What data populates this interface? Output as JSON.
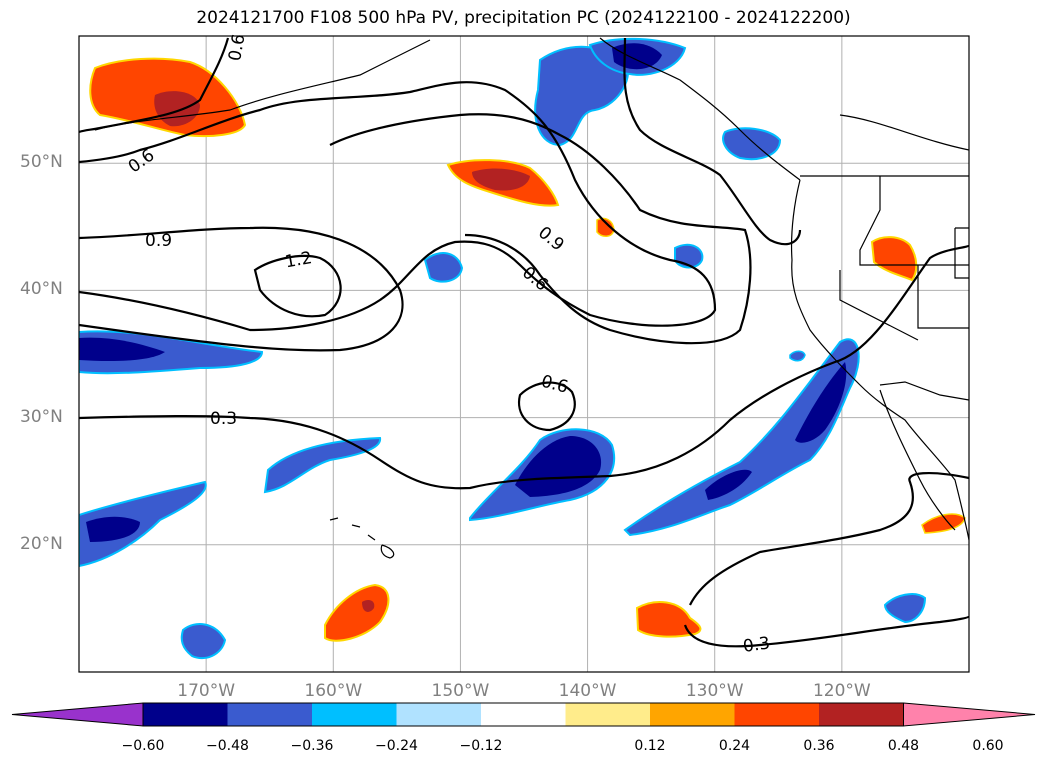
{
  "title": "2024121700 F108 500 hPa PV, precipitation PC (2024122100 - 2024122200)",
  "map": {
    "lon_range": [
      -180,
      -110
    ],
    "lat_range": [
      10,
      60
    ],
    "lat_ticks": [
      {
        "value": 20,
        "label": "20°N"
      },
      {
        "value": 30,
        "label": "30°N"
      },
      {
        "value": 40,
        "label": "40°N"
      },
      {
        "value": 50,
        "label": "50°N"
      }
    ],
    "lon_ticks": [
      {
        "value": -170,
        "label": "170°W"
      },
      {
        "value": -160,
        "label": "160°W"
      },
      {
        "value": -150,
        "label": "150°W"
      },
      {
        "value": -140,
        "label": "140°W"
      },
      {
        "value": -130,
        "label": "130°W"
      },
      {
        "value": -120,
        "label": "120°W"
      }
    ],
    "grid": true,
    "contour_labels": [
      "0.6",
      "0.6",
      "0.9",
      "1.2",
      "0.9",
      "0.6",
      "0.6",
      "0.3",
      "0.3"
    ]
  },
  "colorbar": {
    "colors": [
      "#9932cc",
      "#00008b",
      "#3a5bcf",
      "#00bfff",
      "#b0e2ff",
      "#ffffff",
      "#ffec8b",
      "#ffa500",
      "#ff4500",
      "#b22222",
      "#ff82ab"
    ],
    "ticks": [
      "−0.60",
      "−0.48",
      "−0.36",
      "−0.24",
      "−0.12",
      "0.12",
      "0.24",
      "0.36",
      "0.48",
      "0.60"
    ]
  }
}
